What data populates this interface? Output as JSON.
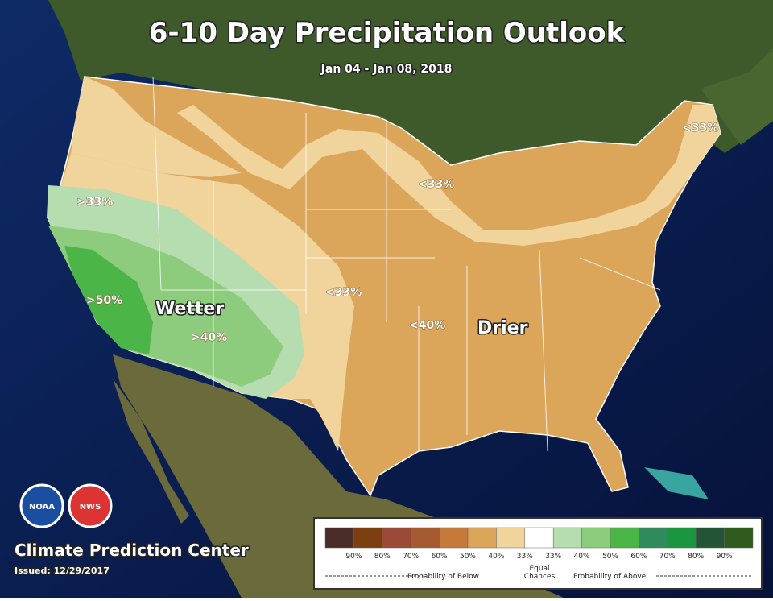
{
  "header": {
    "title": "6-10 Day Precipitation Outlook",
    "subtitle": "Jan 04 - Jan 08, 2018"
  },
  "map_labels": [
    ">33%",
    ">50%",
    "Wetter",
    ">40%",
    "<33%",
    "<33%",
    "<33%",
    "<40%",
    "Drier",
    "<33%"
  ],
  "logos": [
    "NOAA",
    "NWS"
  ],
  "footer": {
    "center": "Climate Prediction Center",
    "issued": "Issued: 12/29/2017"
  },
  "legend": {
    "colors": [
      "#4a2c28",
      "#7b3f10",
      "#9a4a36",
      "#a65a30",
      "#c57a3b",
      "#dba55a",
      "#f0d49c",
      "#ffffff",
      "#b5ddb0",
      "#8dcc7c",
      "#4cb548",
      "#2f8a5c",
      "#1a9641",
      "#245436",
      "#2e5a1c"
    ],
    "labels": [
      "90%",
      "80%",
      "70%",
      "60%",
      "50%",
      "40%",
      "33%",
      "33%",
      "40%",
      "50%",
      "60%",
      "70%",
      "80%",
      "90%"
    ],
    "equal": [
      "Equal",
      "Chances"
    ],
    "below": "Probability of Below",
    "above": "Probability of Above"
  }
}
